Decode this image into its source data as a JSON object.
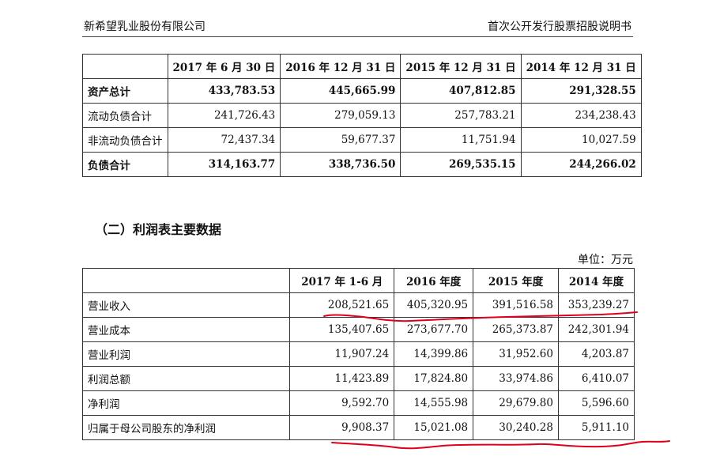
{
  "header": {
    "company": "新希望乳业股份有限公司",
    "document": "首次公开发行股票招股说明书"
  },
  "balance": {
    "columns": [
      "",
      "2017 年 6 月 30 日",
      "2016 年 12 月 31 日",
      "2015 年 12 月 31 日",
      "2014 年 12 月 31 日"
    ],
    "rows": [
      {
        "label": "资产总计",
        "bold": true,
        "values": [
          "433,783.53",
          "445,665.99",
          "407,812.85",
          "291,328.55"
        ]
      },
      {
        "label": "流动负债合计",
        "bold": false,
        "values": [
          "241,726.43",
          "279,059.13",
          "257,783.21",
          "234,238.43"
        ]
      },
      {
        "label": "非流动负债合计",
        "bold": false,
        "values": [
          "72,437.34",
          "59,677.37",
          "11,751.94",
          "10,027.59"
        ]
      },
      {
        "label": "负债合计",
        "bold": true,
        "values": [
          "314,163.77",
          "338,736.50",
          "269,535.15",
          "244,266.02"
        ]
      }
    ]
  },
  "income": {
    "title": "（二）利润表主要数据",
    "unit": "单位：万元",
    "columns": [
      "",
      "2017 年 1-6 月",
      "2016 年度",
      "2015 年度",
      "2014 年度"
    ],
    "rows": [
      {
        "label": "营业收入",
        "values": [
          "208,521.65",
          "405,320.95",
          "391,516.58",
          "353,239.27"
        ]
      },
      {
        "label": "营业成本",
        "values": [
          "135,407.65",
          "273,677.70",
          "265,373.87",
          "242,301.94"
        ]
      },
      {
        "label": "营业利润",
        "values": [
          "11,907.24",
          "14,399.86",
          "31,952.60",
          "4,203.87"
        ]
      },
      {
        "label": "利润总额",
        "values": [
          "11,423.89",
          "17,824.80",
          "33,974.86",
          "6,410.07"
        ]
      },
      {
        "label": "净利润",
        "values": [
          "9,592.70",
          "14,555.98",
          "29,679.80",
          "5,596.60"
        ]
      },
      {
        "label": "归属于母公司股东的净利润",
        "values": [
          "9,908.37",
          "15,021.08",
          "30,240.28",
          "5,911.10"
        ]
      }
    ]
  },
  "annotation_color": "#e0001b"
}
